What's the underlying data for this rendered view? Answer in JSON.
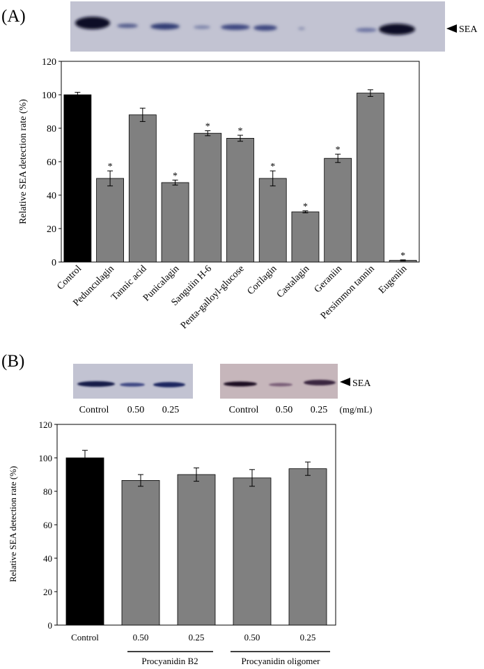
{
  "panelA": {
    "label": "(A)",
    "blot_label": "SEA",
    "chart_data": {
      "type": "bar",
      "title": "",
      "xlabel": "",
      "ylabel": "Relative SEA detection rate (%)",
      "ylim": [
        0,
        120
      ],
      "yticks": [
        0,
        20,
        40,
        60,
        80,
        100,
        120
      ],
      "categories": [
        "Control",
        "Pedunculagin",
        "Tannic acid",
        "Punicalagin",
        "Sanguiin H-6",
        "Penta-galloyl-glucose",
        "Corilagin",
        "Castalagin",
        "Geraniin",
        "Persimmon tannin",
        "Eugeniin"
      ],
      "values": [
        100,
        50,
        88,
        47.5,
        77,
        74,
        50,
        30,
        62,
        101,
        1
      ],
      "errors": [
        1.5,
        4.5,
        4,
        1.5,
        1.5,
        1.8,
        4.5,
        0.6,
        2.5,
        2,
        0.3
      ],
      "significant": [
        false,
        true,
        false,
        true,
        true,
        true,
        true,
        true,
        true,
        false,
        true
      ],
      "significance_marker": "*",
      "colors": [
        "#000000",
        "#808080",
        "#808080",
        "#808080",
        "#808080",
        "#808080",
        "#808080",
        "#808080",
        "#808080",
        "#808080",
        "#808080"
      ]
    }
  },
  "panelB": {
    "label": "(B)",
    "blot_label": "SEA",
    "blot1_lanes": [
      "Control",
      "0.50",
      "0.25"
    ],
    "blot2_lanes": [
      "Control",
      "0.50",
      "0.25"
    ],
    "unit": "(mg/mL)",
    "group1": "Procyanidin B2",
    "group2": "Procyanidin oligomer",
    "chart_data": {
      "type": "bar",
      "title": "",
      "xlabel": "",
      "ylabel": "Relative SEA detection rate (%)",
      "ylim": [
        0,
        120
      ],
      "yticks": [
        0,
        20,
        40,
        60,
        80,
        100,
        120
      ],
      "categories": [
        "Control",
        "0.50",
        "0.25",
        "0.50",
        "0.25"
      ],
      "values": [
        100,
        86.5,
        90,
        88,
        93.5
      ],
      "errors": [
        4.5,
        3.5,
        4,
        5,
        4
      ],
      "colors": [
        "#000000",
        "#808080",
        "#808080",
        "#808080",
        "#808080"
      ]
    }
  }
}
